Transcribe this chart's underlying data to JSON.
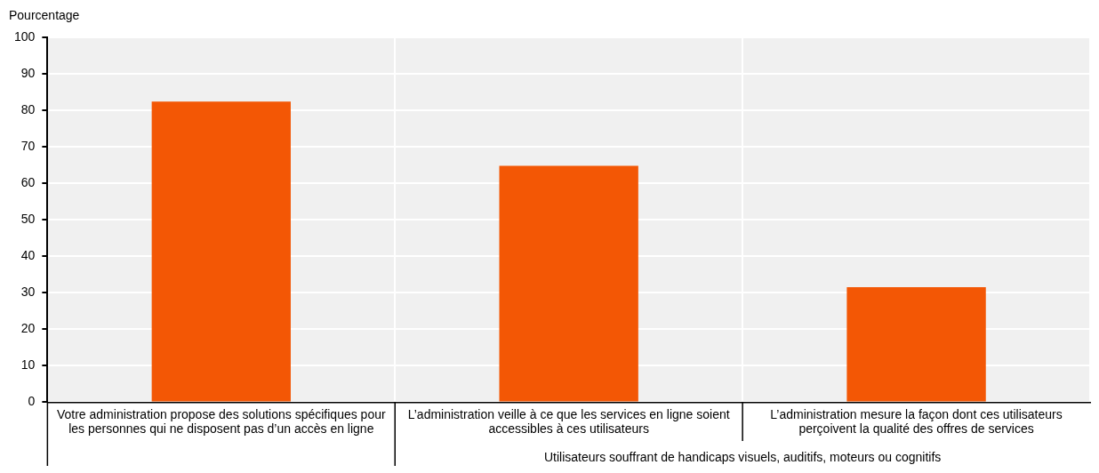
{
  "chart_data": {
    "type": "bar",
    "ylabel": "Pourcentage",
    "categories": [
      "Votre administration propose des solutions spécifiques pour les personnes qui ne disposent pas d’un accès en ligne",
      "L’administration veille à ce que les services en ligne soient accessibles à ces utilisateurs",
      "L’administration mesure la façon dont ces utilisateurs perçoivent la qualité des offres de services"
    ],
    "values": [
      82.4,
      64.8,
      31.5
    ],
    "color": "#f35705",
    "ylim": [
      0,
      100
    ],
    "yticks": [
      0,
      10,
      20,
      30,
      40,
      50,
      60,
      70,
      80,
      90,
      100
    ],
    "grid": true,
    "annotations": [
      "Utilisateurs souffrant de handicaps visuels, auditifs, moteurs ou cognitifs"
    ]
  }
}
